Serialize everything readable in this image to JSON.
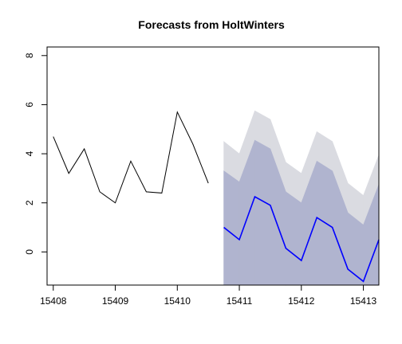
{
  "chart_data": {
    "type": "line",
    "title": "Forecasts from HoltWinters",
    "xlabel": "",
    "ylabel": "",
    "xlim": [
      15407.9,
      15413.25
    ],
    "ylim": [
      -1.35,
      8.35
    ],
    "x_ticks": [
      15408,
      15409,
      15410,
      15411,
      15412,
      15413
    ],
    "y_ticks": [
      0,
      2,
      4,
      6,
      8
    ],
    "observed": {
      "color": "#000000",
      "x": [
        15408.0,
        15408.25,
        15408.5,
        15408.75,
        15409.0,
        15409.25,
        15409.5,
        15409.75,
        15410.0,
        15410.25,
        15410.5
      ],
      "y": [
        4.7,
        3.2,
        4.2,
        2.45,
        2.0,
        3.7,
        2.45,
        2.4,
        5.7,
        4.4,
        2.8
      ]
    },
    "forecast": {
      "color": "#0000ff",
      "x": [
        15410.75,
        15411.0,
        15411.25,
        15411.5,
        15411.75,
        15412.0,
        15412.25,
        15412.5,
        15412.75,
        15413.0,
        15413.25
      ],
      "mean": [
        1.0,
        0.5,
        2.25,
        1.9,
        0.15,
        -0.35,
        1.4,
        1.0,
        -0.7,
        -1.2,
        0.5
      ],
      "lo80": [
        -1.35,
        -1.35,
        -1.35,
        -1.35,
        -1.35,
        -1.35,
        -1.35,
        -1.35,
        -1.35,
        -1.35,
        -1.35
      ],
      "hi80": [
        3.3,
        2.85,
        4.55,
        4.2,
        2.45,
        2.0,
        3.7,
        3.3,
        1.6,
        1.1,
        2.75
      ],
      "lo95": [
        -1.35,
        -1.35,
        -0.05,
        -0.45,
        -1.35,
        -1.35,
        -0.9,
        -1.35,
        -1.35,
        -1.35,
        -1.35
      ],
      "hi95": [
        4.5,
        4.0,
        5.75,
        5.4,
        3.65,
        3.2,
        4.9,
        4.5,
        2.8,
        2.3,
        3.95
      ],
      "band80_color": "#b0b4cf",
      "band95_color": "#dadbe1"
    }
  }
}
